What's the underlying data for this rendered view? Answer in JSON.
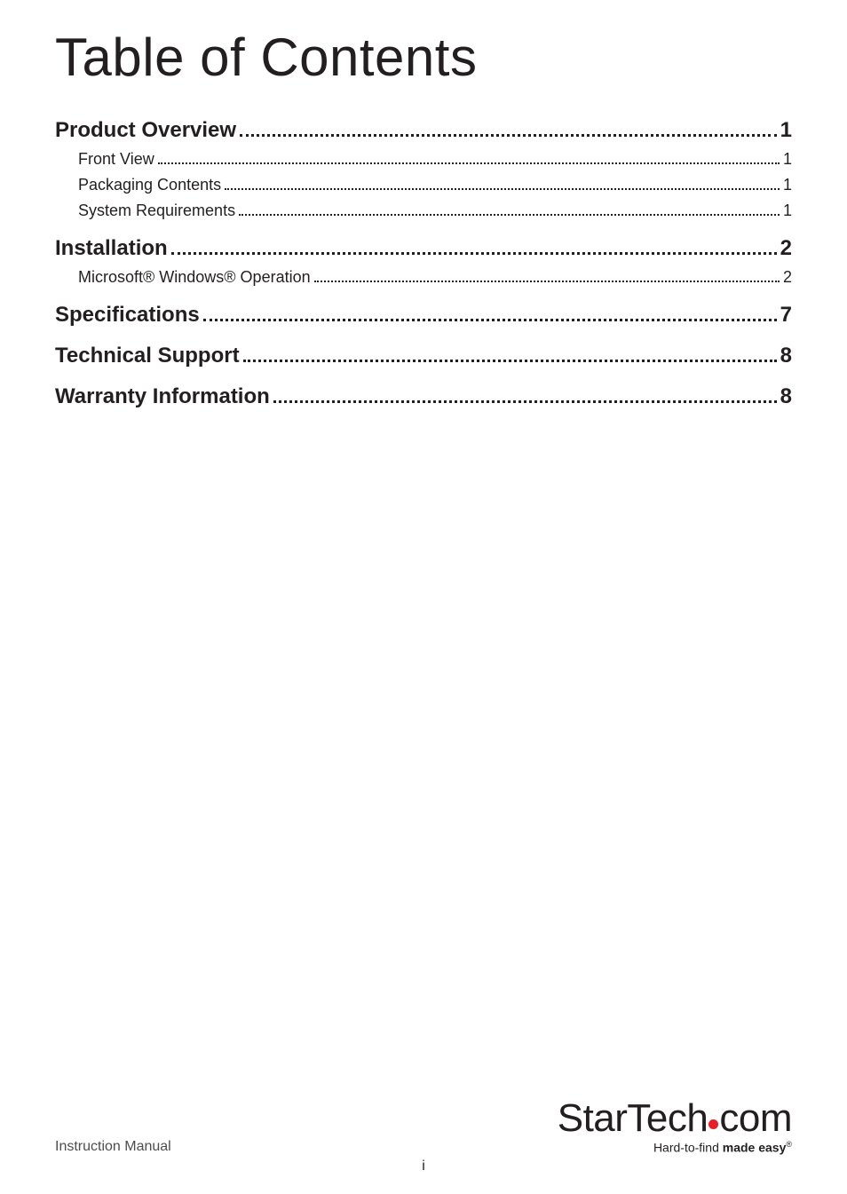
{
  "title": "Table of Contents",
  "toc": [
    {
      "level": "section",
      "label": "Product Overview",
      "page": "1"
    },
    {
      "level": "sub",
      "label": "Front View",
      "page": "1"
    },
    {
      "level": "sub",
      "label": "Packaging Contents",
      "page": "1"
    },
    {
      "level": "sub",
      "label": "System Requirements",
      "page": "1"
    },
    {
      "level": "section",
      "label": "Installation",
      "page": "2"
    },
    {
      "level": "sub",
      "label": "Microsoft® Windows® Operation",
      "page": "2"
    },
    {
      "level": "section",
      "label": "Specifications",
      "page": "7"
    },
    {
      "level": "section",
      "label": "Technical Support",
      "page": "8"
    },
    {
      "level": "section",
      "label": "Warranty Information",
      "page": "8"
    }
  ],
  "footer": {
    "left": "Instruction Manual",
    "page_number": "i",
    "logo": {
      "part1": "StarTec",
      "part2": "com",
      "tagline_prefix": "Hard-to-find ",
      "tagline_bold": "made easy",
      "reg": "®"
    }
  },
  "colors": {
    "text": "#231f20",
    "muted": "#4d4d4d",
    "accent": "#ec1c24",
    "background": "#ffffff"
  },
  "typography": {
    "title_pt": 60,
    "section_pt": 24,
    "sub_pt": 18,
    "footer_pt": 16,
    "logo_pt": 44,
    "tagline_pt": 14
  }
}
